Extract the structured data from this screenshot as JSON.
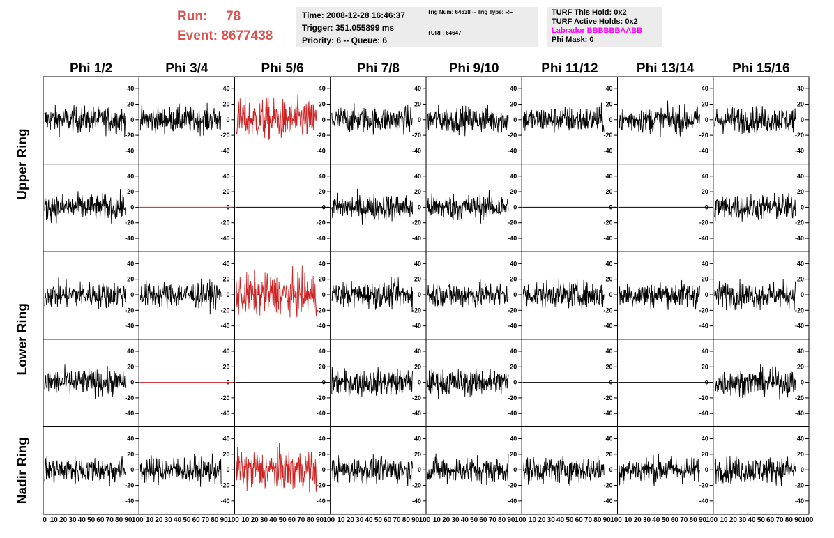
{
  "header": {
    "run_label": "Run:",
    "run_value": "78",
    "event_label": "Event:",
    "event_value": "8677438",
    "time_line": "Time: 2008-12-28 16:46:37",
    "trigger_line": "Trigger: 351.055899 ms",
    "priority_line": "Priority: 6 -- Queue: 6",
    "trig_num_line": "Trig Num: 64638 -- Trig Type: RF",
    "turf_line": "TURF: 64647",
    "turf_hold_line": "TURF This Hold: 0x2",
    "turf_active_line": "TURF Active Holds: 0x2",
    "labrador_line": "Labrador BBBBBBAABB",
    "phi_mask_line": "Phi Mask: 0"
  },
  "columns": [
    "Phi 1/2",
    "Phi 3/4",
    "Phi 5/6",
    "Phi 7/8",
    "Phi 9/10",
    "Phi 11/12",
    "Phi 13/14",
    "Phi 15/16"
  ],
  "ring_labels": [
    "Upper Ring",
    "Lower Ring",
    "Nadir Ring"
  ],
  "y_ticks": [
    "40",
    "20",
    "0",
    "-20",
    "-40"
  ],
  "x_ticks_first": [
    "0",
    "10",
    "20",
    "30",
    "40",
    "50",
    "60",
    "70",
    "80",
    "90",
    "100"
  ],
  "x_ticks_other": [
    "10",
    "20",
    "30",
    "40",
    "50",
    "60",
    "70",
    "80",
    "90",
    "100"
  ],
  "colors": {
    "accent_red": "#d9534f",
    "trace_red": "#cc2222",
    "trace_black": "#000000",
    "magenta": "#ff00ff",
    "box_bg": "#ececec"
  },
  "chart_data": {
    "type": "line",
    "xlim": [
      0,
      100
    ],
    "ylim": [
      -50,
      50
    ],
    "rows": 5,
    "cols": 8,
    "panels": [
      [
        "noise",
        "noise",
        "noise-red",
        "noise",
        "noise",
        "noise",
        "noise",
        "noise"
      ],
      [
        "noise",
        "flat-red",
        "flat",
        "noise",
        "noise",
        "flat",
        "flat",
        "noise"
      ],
      [
        "noise",
        "noise",
        "noise-red",
        "noise",
        "noise",
        "noise",
        "noise",
        "noise"
      ],
      [
        "noise",
        "flat-red",
        "flat",
        "noise",
        "noise",
        "flat",
        "flat",
        "noise"
      ],
      [
        "noise",
        "noise",
        "noise-red",
        "noise",
        "noise",
        "noise",
        "noise",
        "noise"
      ]
    ]
  }
}
